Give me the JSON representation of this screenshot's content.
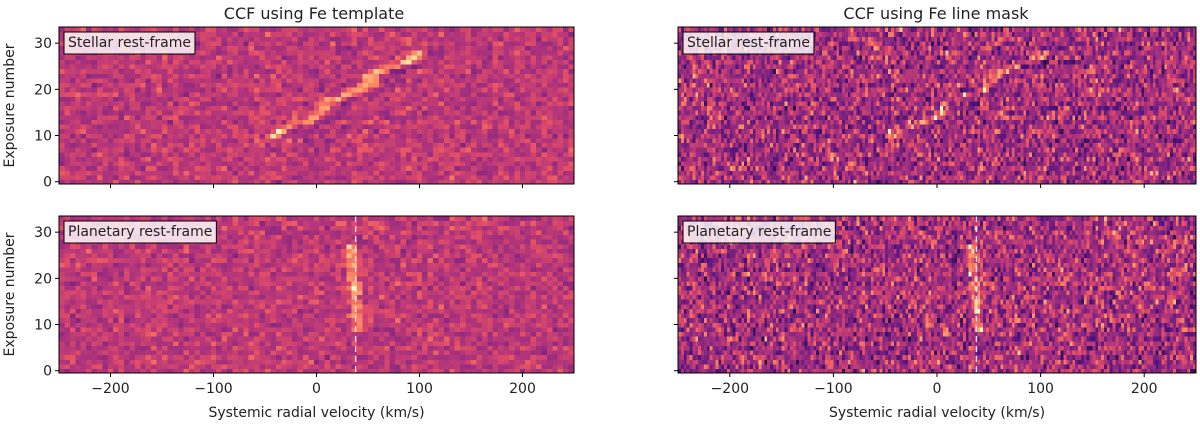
{
  "figure": {
    "columns": [
      {
        "title": "CCF using Fe template"
      },
      {
        "title": "CCF using Fe line mask"
      }
    ]
  },
  "chart_data": [
    {
      "type": "heatmap",
      "title": "CCF using Fe template",
      "label": "Stellar rest-frame",
      "xlabel": "",
      "ylabel": "Exposure number",
      "xlim": [
        -250,
        250
      ],
      "ylim": [
        -0.5,
        33.5
      ],
      "xticks": [
        -200,
        -100,
        0,
        100,
        200
      ],
      "yticks": [
        0,
        10,
        20,
        30
      ],
      "colormap": "magma",
      "n_exposures": 34,
      "signal": "diagonal track from about (-30 km/s, exposure 11) to (+90 km/s, exposure 27)",
      "vline": null
    },
    {
      "type": "heatmap",
      "title": "CCF using Fe line mask",
      "label": "Stellar rest-frame",
      "xlabel": "",
      "ylabel": "",
      "xlim": [
        -250,
        250
      ],
      "ylim": [
        -0.5,
        33.5
      ],
      "xticks": [
        -200,
        -100,
        0,
        100,
        200
      ],
      "yticks": [
        0,
        10,
        20,
        30
      ],
      "colormap": "magma",
      "n_exposures": 34,
      "signal": "weak diagonal track in noise",
      "vline": null
    },
    {
      "type": "heatmap",
      "title": "",
      "label": "Planetary rest-frame",
      "xlabel": "Systemic radial velocity (km/s)",
      "ylabel": "Exposure number",
      "xlim": [
        -250,
        250
      ],
      "ylim": [
        -0.5,
        33.5
      ],
      "xticks": [
        -200,
        -100,
        0,
        100,
        200
      ],
      "yticks": [
        0,
        10,
        20,
        30
      ],
      "colormap": "magma",
      "n_exposures": 34,
      "signal": "vertical trail near +37 km/s for exposures 10-26",
      "vline": 38
    },
    {
      "type": "heatmap",
      "title": "",
      "label": "Planetary rest-frame",
      "xlabel": "Systemic radial velocity (km/s)",
      "ylabel": "",
      "xlim": [
        -250,
        250
      ],
      "ylim": [
        -0.5,
        33.5
      ],
      "xticks": [
        -200,
        -100,
        0,
        100,
        200
      ],
      "yticks": [
        0,
        10,
        20,
        30
      ],
      "colormap": "magma",
      "n_exposures": 34,
      "signal": "vertical trail near +37 km/s for exposures 10-26",
      "vline": 38
    }
  ]
}
